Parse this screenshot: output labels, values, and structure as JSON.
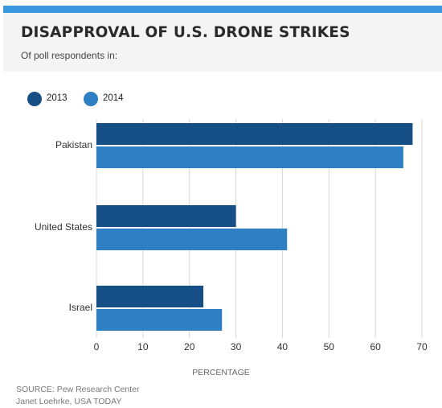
{
  "header": {
    "title": "DISAPPROVAL OF U.S. DRONE STRIKES",
    "subtitle": "Of poll respondents in:"
  },
  "colors": {
    "topbar": "#3a96dd",
    "series_2013": "#154f85",
    "series_2014": "#2e7fc4"
  },
  "chart_data": {
    "type": "bar",
    "orientation": "horizontal",
    "title": "DISAPPROVAL OF U.S. DRONE STRIKES",
    "subtitle": "Of poll respondents in:",
    "categories": [
      "Pakistan",
      "United States",
      "Israel"
    ],
    "series": [
      {
        "name": "2013",
        "values": [
          68,
          30,
          23
        ]
      },
      {
        "name": "2014",
        "values": [
          66,
          41,
          27
        ]
      }
    ],
    "xlabel": "PERCENTAGE",
    "ylabel": "",
    "xlim": [
      0,
      70
    ],
    "xticks": [
      0,
      10,
      20,
      30,
      40,
      50,
      60,
      70
    ],
    "grid": true,
    "legend": "top-left"
  },
  "footer": {
    "source": "SOURCE: Pew Research Center",
    "credit": "Janet Loehrke, USA TODAY"
  }
}
